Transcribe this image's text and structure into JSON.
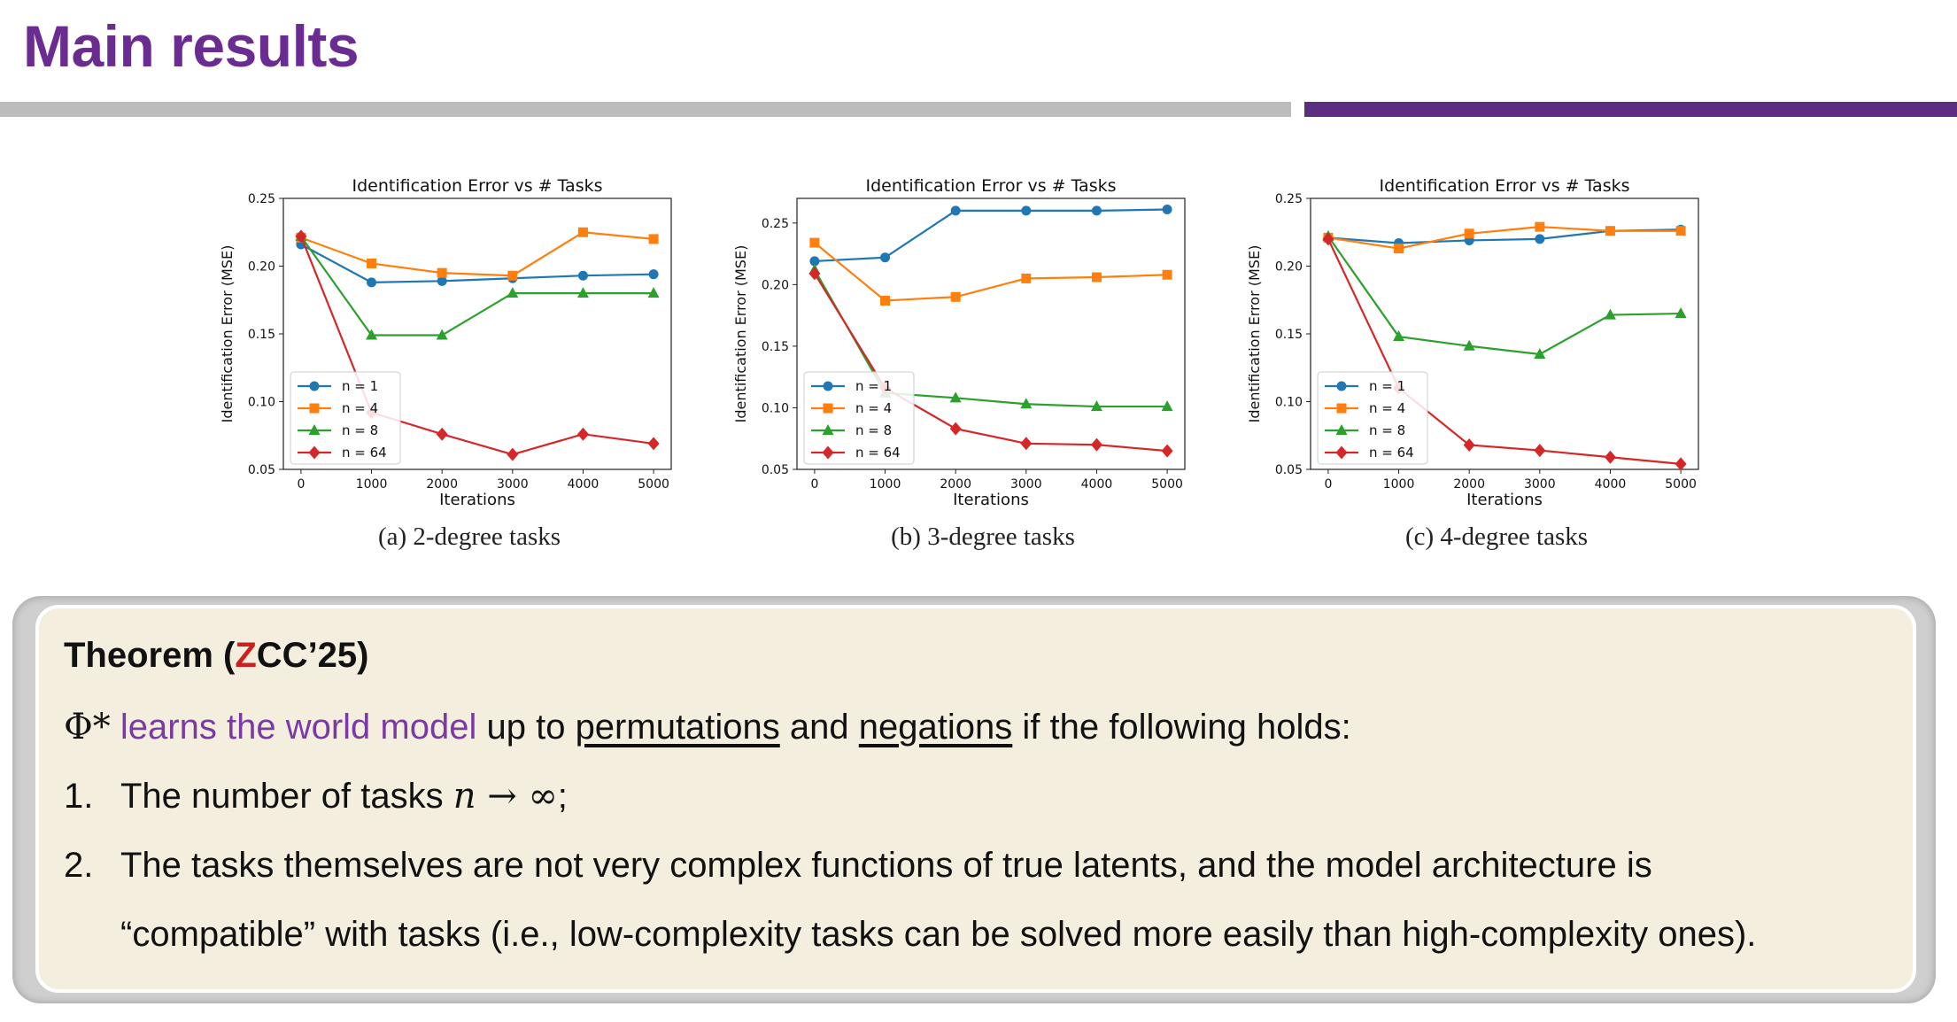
{
  "slide": {
    "title": "Main results"
  },
  "chart_data": [
    {
      "type": "line",
      "caption": "(a) 2-degree tasks",
      "title": "Identification Error vs # Tasks",
      "xlabel": "Iterations",
      "ylabel": "Identification Error (MSE)",
      "xlim": [
        0,
        5000
      ],
      "ylim": [
        0.05,
        0.25
      ],
      "xticks": [
        0,
        1000,
        2000,
        3000,
        4000,
        5000
      ],
      "yticks": [
        0.05,
        0.1,
        0.15,
        0.2,
        0.25
      ],
      "ytick_labels": [
        "0.05",
        "0.10",
        "0.15",
        "0.20",
        "0.25"
      ],
      "legend": "lower-left",
      "x": [
        0,
        1000,
        2000,
        3000,
        4000,
        5000
      ],
      "series": [
        {
          "name": "n = 1",
          "color": "#1f77b4",
          "marker": "circle",
          "values": [
            0.216,
            0.188,
            0.189,
            0.191,
            0.193,
            0.194
          ]
        },
        {
          "name": "n = 4",
          "color": "#ff7f0e",
          "marker": "square",
          "values": [
            0.221,
            0.202,
            0.195,
            0.193,
            0.225,
            0.22
          ]
        },
        {
          "name": "n = 8",
          "color": "#2ca02c",
          "marker": "triangle",
          "values": [
            0.222,
            0.149,
            0.149,
            0.18,
            0.18,
            0.18
          ]
        },
        {
          "name": "n = 64",
          "color": "#d62728",
          "marker": "diamond",
          "values": [
            0.222,
            0.092,
            0.076,
            0.061,
            0.076,
            0.069
          ]
        }
      ]
    },
    {
      "type": "line",
      "caption": "(b) 3-degree tasks",
      "title": "Identification Error vs # Tasks",
      "xlabel": "Iterations",
      "ylabel": "Identification Error (MSE)",
      "xlim": [
        0,
        5000
      ],
      "ylim": [
        0.05,
        0.27
      ],
      "xticks": [
        0,
        1000,
        2000,
        3000,
        4000,
        5000
      ],
      "yticks": [
        0.05,
        0.1,
        0.15,
        0.2,
        0.25
      ],
      "ytick_labels": [
        "0.05",
        "0.10",
        "0.15",
        "0.20",
        "0.25"
      ],
      "legend": "lower-left",
      "x": [
        0,
        1000,
        2000,
        3000,
        4000,
        5000
      ],
      "series": [
        {
          "name": "n = 1",
          "color": "#1f77b4",
          "marker": "circle",
          "values": [
            0.219,
            0.222,
            0.26,
            0.26,
            0.26,
            0.261
          ]
        },
        {
          "name": "n = 4",
          "color": "#ff7f0e",
          "marker": "square",
          "values": [
            0.234,
            0.187,
            0.19,
            0.205,
            0.206,
            0.208
          ]
        },
        {
          "name": "n = 8",
          "color": "#2ca02c",
          "marker": "triangle",
          "values": [
            0.212,
            0.112,
            0.108,
            0.103,
            0.101,
            0.101
          ]
        },
        {
          "name": "n = 64",
          "color": "#d62728",
          "marker": "diamond",
          "values": [
            0.209,
            0.116,
            0.083,
            0.071,
            0.07,
            0.065
          ]
        }
      ]
    },
    {
      "type": "line",
      "caption": "(c) 4-degree tasks",
      "title": "Identification Error vs # Tasks",
      "xlabel": "Iterations",
      "ylabel": "Identification Error (MSE)",
      "xlim": [
        0,
        5000
      ],
      "ylim": [
        0.05,
        0.25
      ],
      "xticks": [
        0,
        1000,
        2000,
        3000,
        4000,
        5000
      ],
      "yticks": [
        0.05,
        0.1,
        0.15,
        0.2,
        0.25
      ],
      "ytick_labels": [
        "0.05",
        "0.10",
        "0.15",
        "0.20",
        "0.25"
      ],
      "legend": "lower-left",
      "x": [
        0,
        1000,
        2000,
        3000,
        4000,
        5000
      ],
      "series": [
        {
          "name": "n = 1",
          "color": "#1f77b4",
          "marker": "circle",
          "values": [
            0.221,
            0.217,
            0.219,
            0.22,
            0.226,
            0.227
          ]
        },
        {
          "name": "n = 4",
          "color": "#ff7f0e",
          "marker": "square",
          "values": [
            0.221,
            0.213,
            0.224,
            0.229,
            0.226,
            0.226
          ]
        },
        {
          "name": "n = 8",
          "color": "#2ca02c",
          "marker": "triangle",
          "values": [
            0.222,
            0.148,
            0.141,
            0.135,
            0.164,
            0.165
          ]
        },
        {
          "name": "n = 64",
          "color": "#d62728",
          "marker": "diamond",
          "values": [
            0.22,
            0.11,
            0.068,
            0.064,
            0.059,
            0.054
          ]
        }
      ]
    }
  ],
  "theorem": {
    "title_prefix": "Theorem (",
    "title_z": "Z",
    "title_suffix": "CC’25)",
    "phi": "Φ*",
    "highlight": "learns the world model",
    "text_up_to": "up to",
    "permutations": "permutations",
    "text_and": "and",
    "negations": "negations",
    "text_holds": "if the following holds:",
    "item1_num": "1.",
    "item1_text": "The number of tasks",
    "item1_math": "n → ∞",
    "item1_end": ";",
    "item2_num": "2.",
    "item2_line1": "The tasks themselves are not very complex functions of true latents, and the model architecture is",
    "item2_line2": "“compatible” with tasks (i.e., low-complexity tasks can be solved more easily than high-complexity ones)."
  }
}
